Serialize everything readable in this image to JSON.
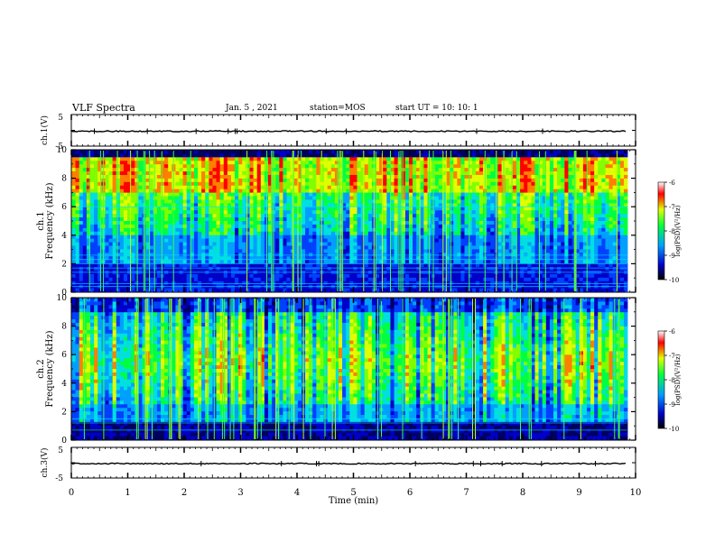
{
  "header": {
    "title": "VLF Spectra",
    "date": "Jan. 5 , 2021",
    "station": "station=MOS",
    "start_ut": "start  UT =   10: 10: 1"
  },
  "chart_data": [
    {
      "type": "line",
      "name": "ch1-waveform-panel",
      "ylabel": "ch.1(V)",
      "ylim": [
        -5,
        5
      ],
      "yticks": [
        "5",
        "-5"
      ],
      "xlim": [
        0,
        10
      ],
      "series": [
        {
          "values": [
            0,
            0
          ]
        }
      ]
    },
    {
      "type": "heatmap",
      "name": "ch1-spectrogram",
      "ylabel": "ch.1\nFrequency  (kHz)",
      "ylabel_line1": "ch.1",
      "ylabel_line2": "Frequency  (kHz)",
      "ylim": [
        0,
        10
      ],
      "yticks": [
        0,
        2,
        4,
        6,
        8,
        10
      ],
      "xlim": [
        0,
        10
      ],
      "colorbar": {
        "label": "log(PSD)(V²/Hz)",
        "range": [
          -10,
          -6
        ],
        "ticks": [
          -6,
          -7,
          -8,
          -9,
          -10
        ]
      }
    },
    {
      "type": "heatmap",
      "name": "ch2-spectrogram",
      "ylabel_line1": "ch.2",
      "ylabel_line2": "Frequency  (kHz)",
      "ylim": [
        0,
        10
      ],
      "yticks": [
        0,
        2,
        4,
        6,
        8,
        10
      ],
      "xlim": [
        0,
        10
      ],
      "colorbar": {
        "label": "log(PSD)(V²/Hz)",
        "range": [
          -10,
          -6
        ],
        "ticks": [
          -6,
          -7,
          -8,
          -9,
          -10
        ]
      }
    },
    {
      "type": "line",
      "name": "ch3-waveform-panel",
      "ylabel": "ch.3(V)",
      "ylim": [
        -5,
        5
      ],
      "yticks": [
        "5",
        "-5"
      ],
      "xlim": [
        0,
        10
      ],
      "series": [
        {
          "values": [
            0,
            0
          ]
        }
      ]
    }
  ],
  "xaxis": {
    "label": "Time  (min)",
    "ticks": [
      "0",
      "1",
      "2",
      "3",
      "4",
      "5",
      "6",
      "7",
      "8",
      "9",
      "10"
    ],
    "range": [
      0,
      10
    ]
  },
  "colors": {
    "dark": "#000000",
    "low": "#0000c0",
    "mid": "#00c0ff",
    "green": "#00ff40",
    "yellow": "#e0ff00",
    "red": "#ff0000"
  }
}
